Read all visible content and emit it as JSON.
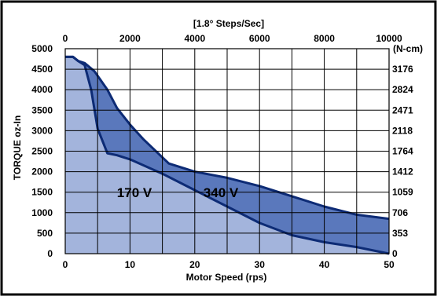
{
  "chart_data": {
    "type": "area",
    "xlabel": "Motor Speed (rps)",
    "ylabel": "TORQUE oz-In",
    "top_axis_label": "[1.8° Steps/Sec]",
    "right_axis_unit": "(N-cm)",
    "xlim": [
      0,
      50
    ],
    "ylim": [
      0,
      5000
    ],
    "grid": true,
    "x_ticks": [
      "0",
      "10",
      "20",
      "30",
      "40",
      "50"
    ],
    "y_ticks": [
      "0",
      "500",
      "1000",
      "1500",
      "2000",
      "2500",
      "3000",
      "3500",
      "4000",
      "4500",
      "5000"
    ],
    "top_ticks": [
      "0",
      "2000",
      "4000",
      "6000",
      "8000",
      "10000"
    ],
    "right_ticks": [
      "0",
      "353",
      "706",
      "1059",
      "1412",
      "1764",
      "2118",
      "2471",
      "2824",
      "3176"
    ],
    "series": [
      {
        "name": "170 V",
        "color": "#a3b4dc",
        "x": [
          0,
          1.2,
          2,
          3,
          4,
          5,
          6.5,
          8,
          10,
          15,
          20,
          25,
          30,
          35,
          40,
          45,
          50
        ],
        "y": [
          4800,
          4800,
          4700,
          4600,
          4000,
          3050,
          2450,
          2400,
          2300,
          1950,
          1550,
          1150,
          750,
          450,
          280,
          160,
          0
        ]
      },
      {
        "name": "340 V",
        "color": "#5a78bc",
        "x": [
          0,
          1.2,
          2,
          3,
          4.5,
          6.5,
          8,
          10,
          12,
          16,
          20,
          25,
          30,
          35,
          40,
          45,
          50
        ],
        "y": [
          4800,
          4800,
          4700,
          4650,
          4450,
          4000,
          3550,
          3150,
          2800,
          2200,
          2000,
          1850,
          1650,
          1400,
          1150,
          950,
          850
        ]
      }
    ],
    "annotations": [
      "170 V",
      "340 V"
    ]
  }
}
